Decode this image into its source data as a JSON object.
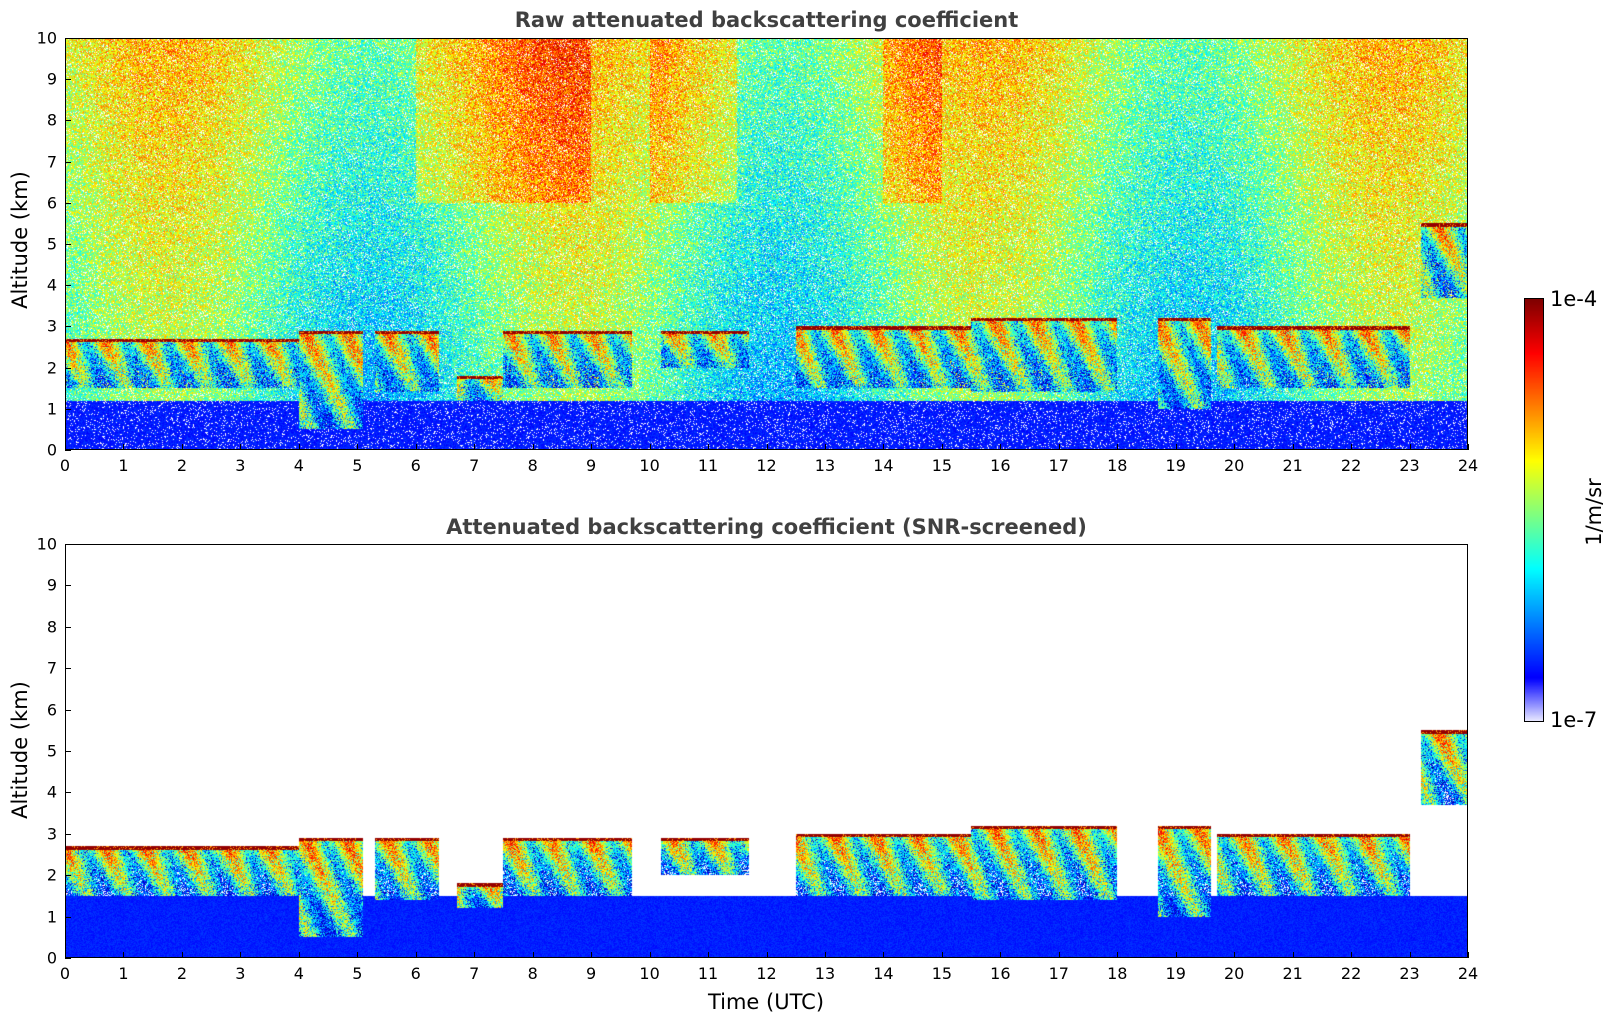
{
  "chart_data": [
    {
      "type": "heatmap",
      "title": "Raw attenuated backscattering coefficient",
      "xlabel": "",
      "ylabel": "Altitude (km)",
      "xlim": [
        0,
        24
      ],
      "ylim": [
        0,
        10
      ],
      "xticks": [
        "0",
        "1",
        "2",
        "3",
        "4",
        "5",
        "6",
        "7",
        "8",
        "9",
        "10",
        "11",
        "12",
        "13",
        "14",
        "15",
        "16",
        "17",
        "18",
        "19",
        "20",
        "21",
        "22",
        "23",
        "24"
      ],
      "yticks": [
        "0",
        "1",
        "2",
        "3",
        "4",
        "5",
        "6",
        "7",
        "8",
        "9",
        "10"
      ],
      "screened": false,
      "cloud_layers": [
        {
          "t0": 0.0,
          "t1": 4.0,
          "top_km": 2.7,
          "base_km": 1.5
        },
        {
          "t0": 4.0,
          "t1": 5.1,
          "top_km": 2.9,
          "base_km": 0.5
        },
        {
          "t0": 5.3,
          "t1": 6.4,
          "top_km": 2.9,
          "base_km": 1.4
        },
        {
          "t0": 6.7,
          "t1": 7.5,
          "top_km": 1.8,
          "base_km": 1.2
        },
        {
          "t0": 7.5,
          "t1": 9.7,
          "top_km": 2.9,
          "base_km": 1.5
        },
        {
          "t0": 10.2,
          "t1": 11.7,
          "top_km": 2.9,
          "base_km": 2.0
        },
        {
          "t0": 12.5,
          "t1": 15.5,
          "top_km": 3.0,
          "base_km": 1.5
        },
        {
          "t0": 15.5,
          "t1": 18.0,
          "top_km": 3.2,
          "base_km": 1.4
        },
        {
          "t0": 18.7,
          "t1": 19.6,
          "top_km": 3.2,
          "base_km": 1.0
        },
        {
          "t0": 19.7,
          "t1": 23.0,
          "top_km": 3.0,
          "base_km": 1.5
        },
        {
          "t0": 23.2,
          "t1": 24.0,
          "top_km": 5.5,
          "base_km": 3.7
        }
      ]
    },
    {
      "type": "heatmap",
      "title": "Attenuated backscattering coefficient (SNR-screened)",
      "xlabel": "Time (UTC)",
      "ylabel": "Altitude (km)",
      "xlim": [
        0,
        24
      ],
      "ylim": [
        0,
        10
      ],
      "xticks": [
        "0",
        "1",
        "2",
        "3",
        "4",
        "5",
        "6",
        "7",
        "8",
        "9",
        "10",
        "11",
        "12",
        "13",
        "14",
        "15",
        "16",
        "17",
        "18",
        "19",
        "20",
        "21",
        "22",
        "23",
        "24"
      ],
      "yticks": [
        "0",
        "1",
        "2",
        "3",
        "4",
        "5",
        "6",
        "7",
        "8",
        "9",
        "10"
      ],
      "screened": true,
      "cloud_layers": [
        {
          "t0": 0.0,
          "t1": 4.0,
          "top_km": 2.7,
          "base_km": 1.5
        },
        {
          "t0": 4.0,
          "t1": 5.1,
          "top_km": 2.9,
          "base_km": 0.5
        },
        {
          "t0": 5.3,
          "t1": 6.4,
          "top_km": 2.9,
          "base_km": 1.4
        },
        {
          "t0": 6.7,
          "t1": 7.5,
          "top_km": 1.8,
          "base_km": 1.2
        },
        {
          "t0": 7.5,
          "t1": 9.7,
          "top_km": 2.9,
          "base_km": 1.5
        },
        {
          "t0": 10.2,
          "t1": 11.7,
          "top_km": 2.9,
          "base_km": 2.0
        },
        {
          "t0": 12.5,
          "t1": 15.5,
          "top_km": 3.0,
          "base_km": 1.5
        },
        {
          "t0": 15.5,
          "t1": 18.0,
          "top_km": 3.2,
          "base_km": 1.4
        },
        {
          "t0": 18.7,
          "t1": 19.6,
          "top_km": 3.2,
          "base_km": 1.0
        },
        {
          "t0": 19.7,
          "t1": 23.0,
          "top_km": 3.0,
          "base_km": 1.5
        },
        {
          "t0": 23.2,
          "t1": 24.0,
          "top_km": 5.5,
          "base_km": 3.7
        }
      ]
    }
  ],
  "colorbar": {
    "label": "1/m/sr",
    "max_label": "1e-4",
    "min_label": "1e-7",
    "max_value": 0.0001,
    "min_value": 1e-07,
    "scale": "log",
    "colormap": "jet"
  }
}
